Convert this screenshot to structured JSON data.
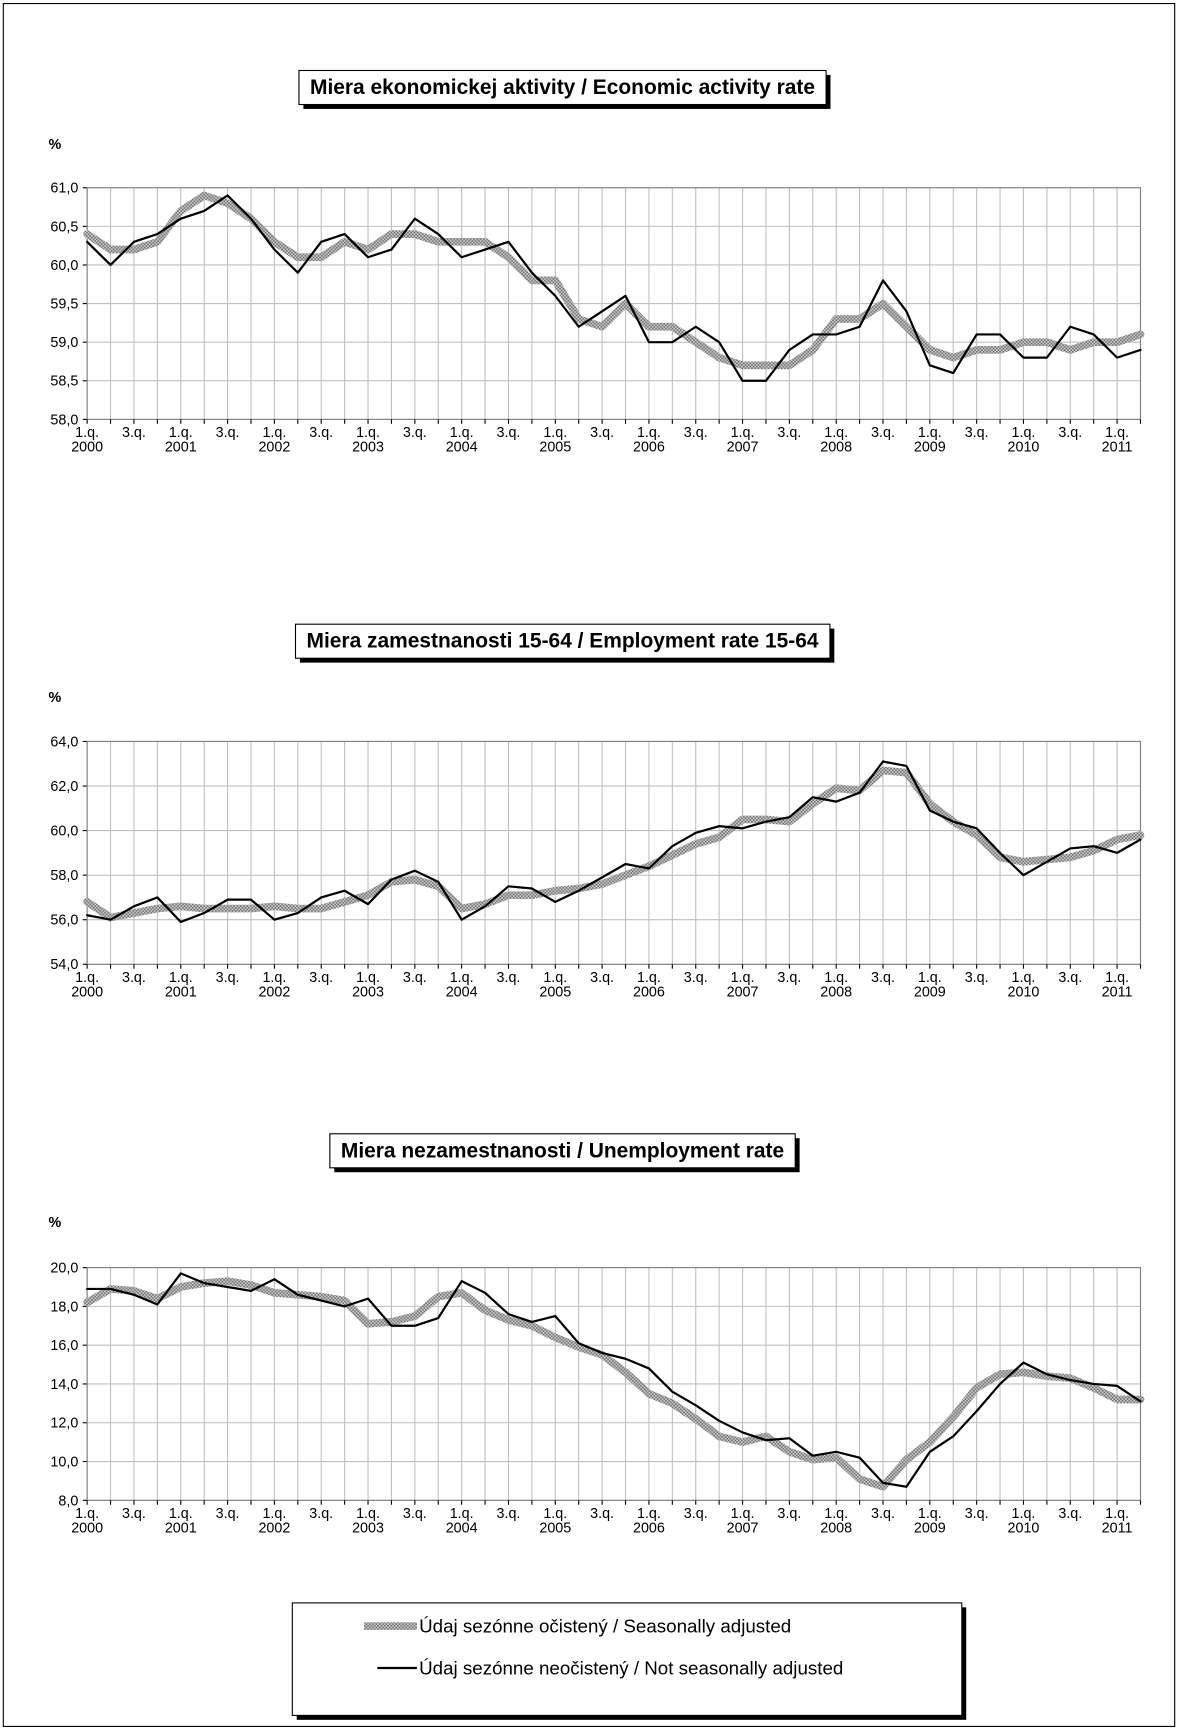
{
  "chart_data": [
    {
      "type": "line",
      "title": "Miera ekonomickej aktivity / Economic activity rate",
      "y_label": "%",
      "categories": [
        "1.q. 2000",
        null,
        "3.q.",
        null,
        "1.q. 2001",
        null,
        "3.q.",
        null,
        "1.q. 2002",
        null,
        "3.q.",
        null,
        "1.q. 2003",
        null,
        "3.q.",
        null,
        "1.q. 2004",
        null,
        "3.q.",
        null,
        "1.q. 2005",
        null,
        "3.q.",
        null,
        "1.q. 2006",
        null,
        "3.q.",
        null,
        "1.q. 2007",
        null,
        "3.q.",
        null,
        "1.q. 2008",
        null,
        "3.q.",
        null,
        "1.q. 2009",
        null,
        "3.q.",
        null,
        "1.q. 2010",
        null,
        "3.q.",
        null,
        "1.q. 2011",
        null
      ],
      "ylim": [
        58,
        61
      ],
      "yticks": [
        {
          "value": 58,
          "label": "58,0"
        },
        {
          "value": 58.5,
          "label": "58,5"
        },
        {
          "value": 59,
          "label": "59,0"
        },
        {
          "value": 59.5,
          "label": "59,5"
        },
        {
          "value": 60,
          "label": "60,0"
        },
        {
          "value": 60.5,
          "label": "60,5"
        },
        {
          "value": 61,
          "label": "61,0"
        }
      ],
      "grid": true,
      "series": [
        {
          "name": "Údaj sezónne očistený / Seasonally adjusted",
          "color": "#a6a6a6",
          "values": [
            60.4,
            60.2,
            60.2,
            60.3,
            60.7,
            60.9,
            60.8,
            60.6,
            60.3,
            60.1,
            60.1,
            60.3,
            60.2,
            60.4,
            60.4,
            60.3,
            60.3,
            60.3,
            60.1,
            59.8,
            59.8,
            59.3,
            59.2,
            59.5,
            59.2,
            59.2,
            59.0,
            58.8,
            58.7,
            58.7,
            58.7,
            58.9,
            59.3,
            59.3,
            59.5,
            59.2,
            58.9,
            58.8,
            58.9,
            58.9,
            59.0,
            59.0,
            58.9,
            59.0,
            59.0,
            59.1
          ]
        },
        {
          "name": "Údaj sezónne neočistený / Not seasonally adjusted",
          "color": "#000000",
          "values": [
            60.3,
            60.0,
            60.3,
            60.4,
            60.6,
            60.7,
            60.9,
            60.6,
            60.2,
            59.9,
            60.3,
            60.4,
            60.1,
            60.2,
            60.6,
            60.4,
            60.1,
            60.2,
            60.3,
            59.9,
            59.6,
            59.2,
            59.4,
            59.6,
            59.0,
            59.0,
            59.2,
            59.0,
            58.5,
            58.5,
            58.9,
            59.1,
            59.1,
            59.2,
            59.8,
            59.4,
            58.7,
            58.6,
            59.1,
            59.1,
            58.8,
            58.8,
            59.2,
            59.1,
            58.8,
            58.9
          ]
        }
      ]
    },
    {
      "type": "line",
      "title": "Miera zamestnanosti 15-64 / Employment rate 15-64",
      "y_label": "%",
      "categories": [
        "1.q. 2000",
        null,
        "3.q.",
        null,
        "1.q. 2001",
        null,
        "3.q.",
        null,
        "1.q. 2002",
        null,
        "3.q.",
        null,
        "1.q. 2003",
        null,
        "3.q.",
        null,
        "1.q. 2004",
        null,
        "3.q.",
        null,
        "1.q. 2005",
        null,
        "3.q.",
        null,
        "1.q. 2006",
        null,
        "3.q.",
        null,
        "1.q. 2007",
        null,
        "3.q.",
        null,
        "1.q. 2008",
        null,
        "3.q.",
        null,
        "1.q. 2009",
        null,
        "3.q.",
        null,
        "1.q. 2010",
        null,
        "3.q.",
        null,
        "1.q. 2011",
        null
      ],
      "ylim": [
        54,
        64
      ],
      "yticks": [
        {
          "value": 54,
          "label": "54,0"
        },
        {
          "value": 56,
          "label": "56,0"
        },
        {
          "value": 58,
          "label": "58,0"
        },
        {
          "value": 60,
          "label": "60,0"
        },
        {
          "value": 62,
          "label": "62,0"
        },
        {
          "value": 64,
          "label": "64,0"
        }
      ],
      "grid": true,
      "series": [
        {
          "color": "#a6a6a6",
          "values": [
            56.8,
            56.1,
            56.3,
            56.5,
            56.6,
            56.5,
            56.5,
            56.5,
            56.6,
            56.5,
            56.5,
            56.8,
            57.1,
            57.7,
            57.8,
            57.5,
            56.5,
            56.7,
            57.1,
            57.1,
            57.3,
            57.4,
            57.6,
            58.0,
            58.4,
            58.9,
            59.4,
            59.7,
            60.5,
            60.5,
            60.4,
            61.2,
            61.9,
            61.8,
            62.7,
            62.6,
            61.2,
            60.4,
            59.8,
            58.8,
            58.6,
            58.7,
            58.8,
            59.1,
            59.6,
            59.8
          ]
        },
        {
          "color": "#000000",
          "values": [
            56.2,
            56.0,
            56.6,
            57.0,
            55.9,
            56.3,
            56.9,
            56.9,
            56.0,
            56.3,
            57.0,
            57.3,
            56.7,
            57.8,
            58.2,
            57.7,
            56.0,
            56.6,
            57.5,
            57.4,
            56.8,
            57.3,
            57.9,
            58.5,
            58.3,
            59.3,
            59.9,
            60.2,
            60.1,
            60.4,
            60.6,
            61.5,
            61.3,
            61.7,
            63.1,
            62.9,
            60.9,
            60.4,
            60.1,
            59.0,
            58.0,
            58.6,
            59.2,
            59.3,
            59.0,
            59.6
          ]
        }
      ]
    },
    {
      "type": "line",
      "title": "Miera nezamestnanosti / Unemployment rate",
      "y_label": "%",
      "categories": [
        "1.q. 2000",
        null,
        "3.q.",
        null,
        "1.q. 2001",
        null,
        "3.q.",
        null,
        "1.q. 2002",
        null,
        "3.q.",
        null,
        "1.q. 2003",
        null,
        "3.q.",
        null,
        "1.q. 2004",
        null,
        "3.q.",
        null,
        "1.q. 2005",
        null,
        "3.q.",
        null,
        "1.q. 2006",
        null,
        "3.q.",
        null,
        "1.q. 2007",
        null,
        "3.q.",
        null,
        "1.q. 2008",
        null,
        "3.q.",
        null,
        "1.q. 2009",
        null,
        "3.q.",
        null,
        "1.q. 2010",
        null,
        "3.q.",
        null,
        "1.q. 2011",
        null
      ],
      "ylim": [
        8,
        20
      ],
      "yticks": [
        {
          "value": 8,
          "label": "8,0"
        },
        {
          "value": 10,
          "label": "10,0"
        },
        {
          "value": 12,
          "label": "12,0"
        },
        {
          "value": 14,
          "label": "14,0"
        },
        {
          "value": 16,
          "label": "16,0"
        },
        {
          "value": 18,
          "label": "18,0"
        },
        {
          "value": 20,
          "label": "20,0"
        }
      ],
      "grid": true,
      "series": [
        {
          "color": "#a6a6a6",
          "values": [
            18.2,
            18.9,
            18.8,
            18.4,
            19.0,
            19.2,
            19.3,
            19.1,
            18.7,
            18.6,
            18.5,
            18.3,
            17.1,
            17.2,
            17.5,
            18.5,
            18.7,
            17.8,
            17.3,
            17.0,
            16.4,
            15.9,
            15.5,
            14.6,
            13.5,
            13.0,
            12.2,
            11.3,
            11.0,
            11.3,
            10.5,
            10.1,
            10.2,
            9.1,
            8.7,
            10.1,
            11.0,
            12.3,
            13.8,
            14.5,
            14.6,
            14.4,
            14.3,
            13.8,
            13.2,
            13.2
          ]
        },
        {
          "color": "#000000",
          "values": [
            18.9,
            18.9,
            18.6,
            18.1,
            19.7,
            19.2,
            19.0,
            18.8,
            19.4,
            18.6,
            18.3,
            18.0,
            18.4,
            17.0,
            17.0,
            17.4,
            19.3,
            18.7,
            17.6,
            17.2,
            17.5,
            16.1,
            15.6,
            15.3,
            14.8,
            13.6,
            12.9,
            12.1,
            11.5,
            11.1,
            11.2,
            10.3,
            10.5,
            10.2,
            8.9,
            8.7,
            10.5,
            11.3,
            12.6,
            14.0,
            15.1,
            14.5,
            14.2,
            14.0,
            13.9,
            13.1
          ]
        }
      ]
    }
  ]
}
